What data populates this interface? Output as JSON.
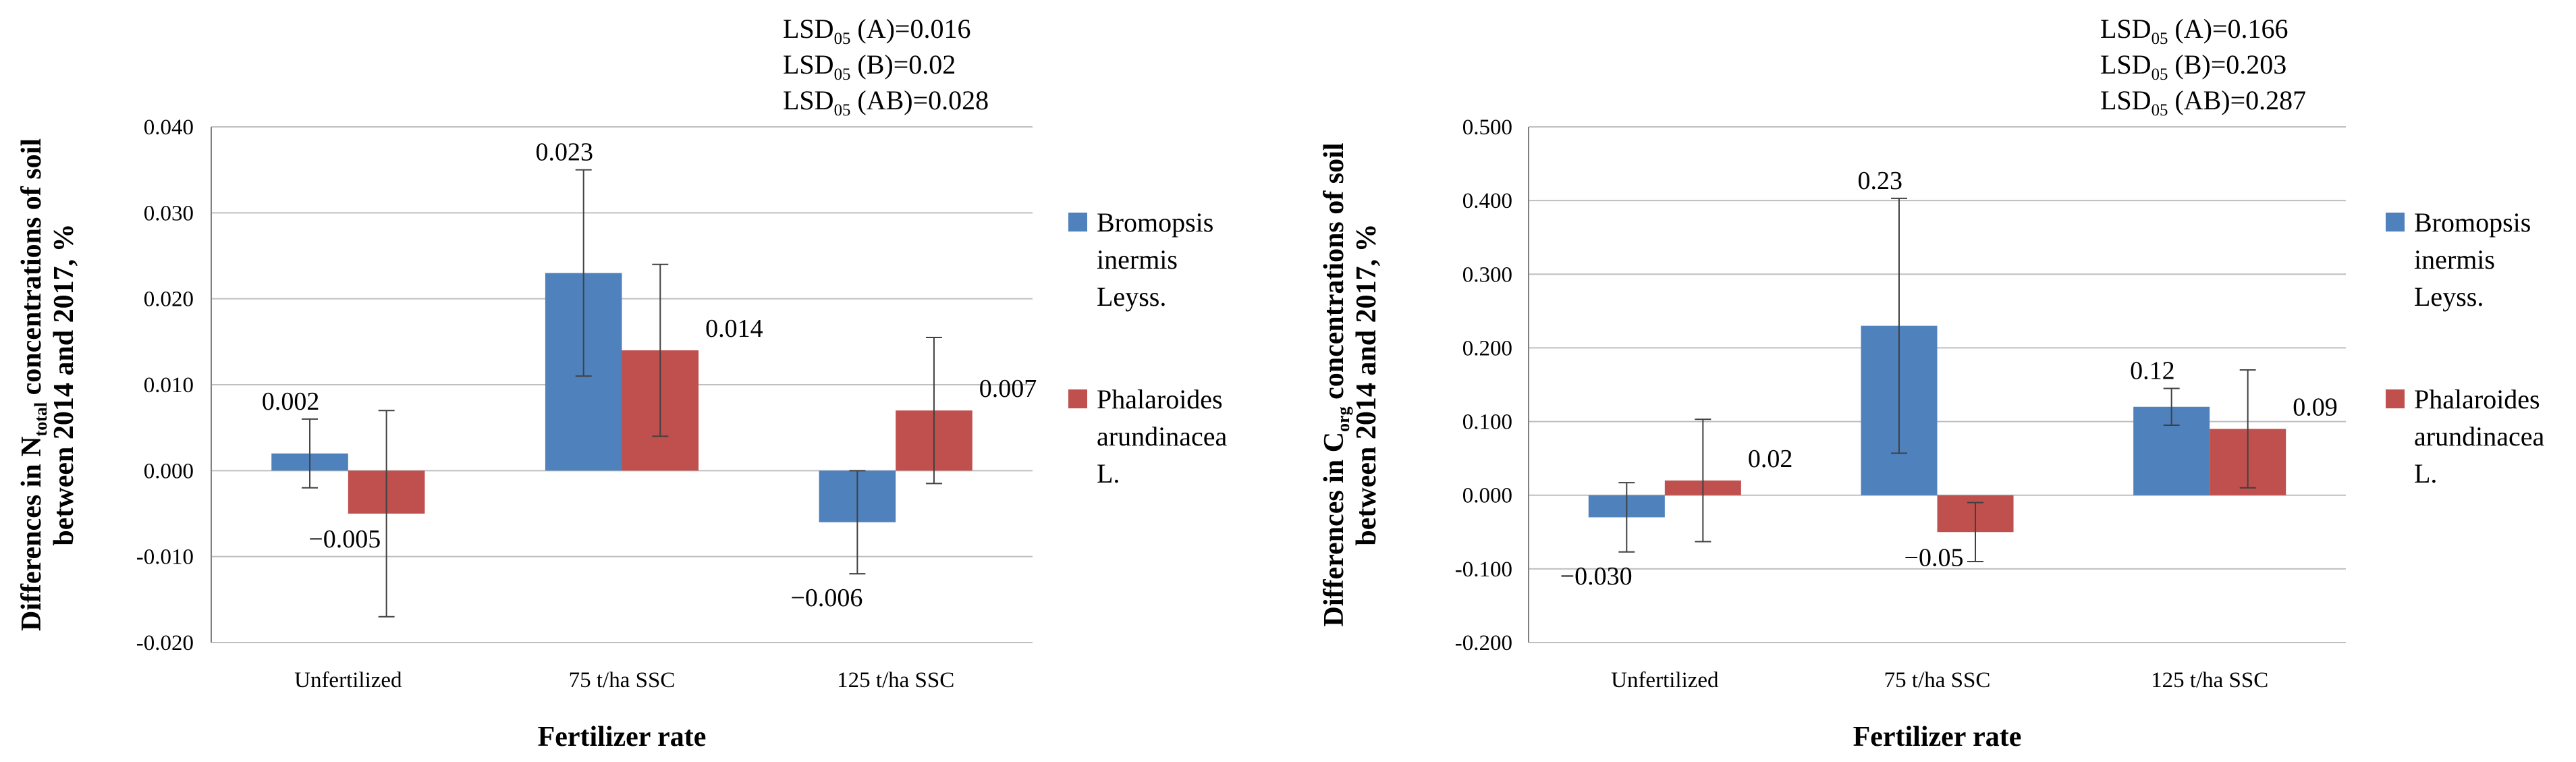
{
  "colors": {
    "series1": "#4F81BD",
    "series2": "#C0504D",
    "grid": "#BFBFBF",
    "axis": "#808080",
    "errbar": "#404040"
  },
  "chart_data": [
    {
      "type": "bar",
      "categories": [
        "Unfertilized",
        "75 t/ha SSC",
        "125 t/ha SSC"
      ],
      "series": [
        {
          "name": "Bromopsis inermis Leyss.",
          "legend_lines": [
            "Bromopsis",
            "inermis",
            "Leyss."
          ],
          "values": [
            0.002,
            0.023,
            -0.006
          ],
          "labels": [
            "0.002",
            "0.023",
            "−0.006"
          ],
          "err": [
            0.004,
            0.012,
            0.006
          ]
        },
        {
          "name": "Phalaroides arundinacea L.",
          "legend_lines": [
            "Phalaroides",
            "arundinacea",
            "L."
          ],
          "values": [
            -0.005,
            0.014,
            0.007
          ],
          "labels": [
            "−0.005",
            "0.014",
            "0.007"
          ],
          "err": [
            0.012,
            0.01,
            0.0085
          ]
        }
      ],
      "ylim": [
        -0.02,
        0.04
      ],
      "yticks": [
        -0.02,
        -0.01,
        0.0,
        0.01,
        0.02,
        0.03,
        0.04
      ],
      "ytick_labels": [
        "-0.020",
        "-0.010",
        "0.000",
        "0.010",
        "0.020",
        "0.030",
        "0.040"
      ],
      "xlabel": "Fertilizer rate",
      "ylabel_line1": {
        "pre": "Differences in N",
        "sub": "total",
        "post": " concentrations of soil"
      },
      "ylabel_line2": "between 2014 and 2017, %",
      "lsd": [
        {
          "pre": "LSD",
          "sub": "05",
          "post": " (A)=0.016"
        },
        {
          "pre": "LSD",
          "sub": "05",
          "post": " (B)=0.02"
        },
        {
          "pre": "LSD",
          "sub": "05",
          "post": " (AB)=0.028"
        }
      ],
      "grid": true,
      "legend": "right"
    },
    {
      "type": "bar",
      "categories": [
        "Unfertilized",
        "75 t/ha SSC",
        "125 t/ha SSC"
      ],
      "series": [
        {
          "name": "Bromopsis inermis Leyss.",
          "legend_lines": [
            "Bromopsis",
            "inermis",
            "Leyss."
          ],
          "values": [
            -0.03,
            0.23,
            0.12
          ],
          "labels": [
            "−0.030",
            "0.23",
            "0.12"
          ],
          "err": [
            0.047,
            0.173,
            0.025
          ]
        },
        {
          "name": "Phalaroides arundinacea L.",
          "legend_lines": [
            "Phalaroides",
            "arundinacea",
            "L."
          ],
          "values": [
            0.02,
            -0.05,
            0.09
          ],
          "labels": [
            "0.02",
            "−0.05",
            "0.09"
          ],
          "err": [
            0.083,
            0.04,
            0.08
          ]
        }
      ],
      "ylim": [
        -0.2,
        0.5
      ],
      "yticks": [
        -0.2,
        -0.1,
        0.0,
        0.1,
        0.2,
        0.3,
        0.4,
        0.5
      ],
      "ytick_labels": [
        "-0.200",
        "-0.100",
        "0.000",
        "0.100",
        "0.200",
        "0.300",
        "0.400",
        "0.500"
      ],
      "xlabel": "Fertilizer rate",
      "ylabel_line1": {
        "pre": "Differences in C",
        "sub": "org",
        "post": " concentrations of soil"
      },
      "ylabel_line2": "between 2014 and 2017, %",
      "lsd": [
        {
          "pre": "LSD",
          "sub": "05",
          "post": " (A)=0.166"
        },
        {
          "pre": "LSD",
          "sub": "05",
          "post": " (B)=0.203"
        },
        {
          "pre": "LSD",
          "sub": "05",
          "post": " (AB)=0.287"
        }
      ],
      "grid": true,
      "legend": "right"
    }
  ]
}
